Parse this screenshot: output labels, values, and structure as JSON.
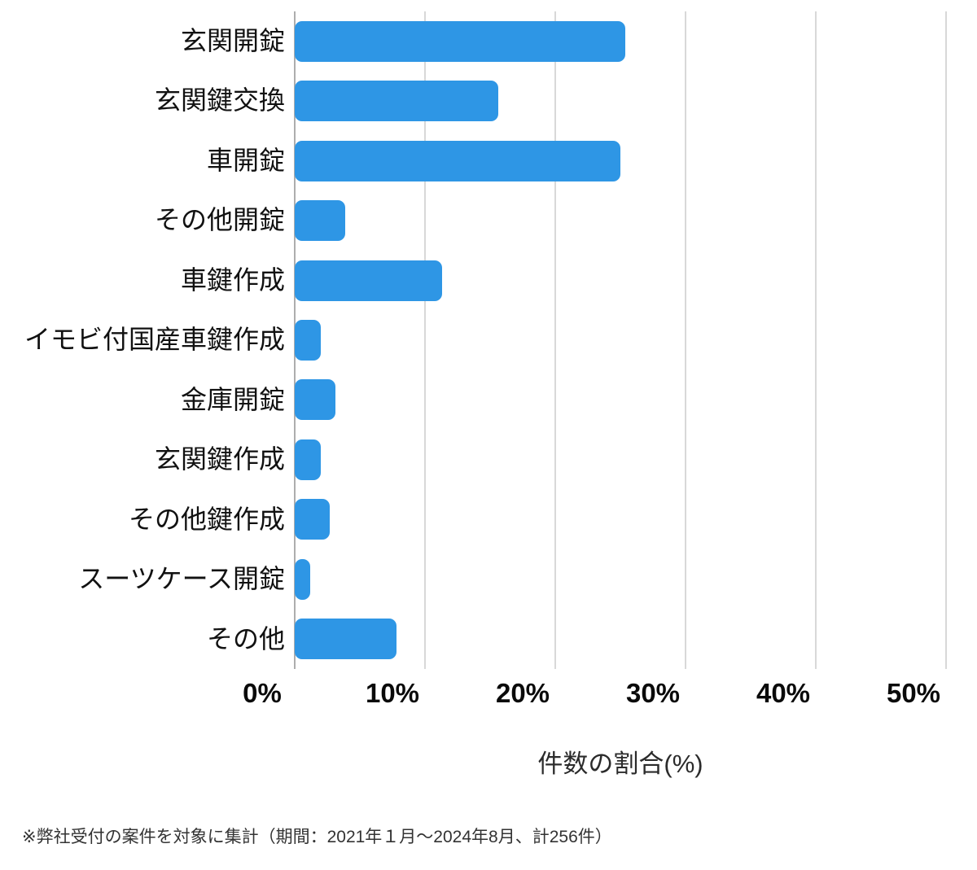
{
  "chart_data": {
    "type": "bar",
    "orientation": "horizontal",
    "title": "",
    "categories": [
      "玄関開錠",
      "玄関鍵交換",
      "車開錠",
      "その他開錠",
      "車鍵作成",
      "イモビ付国産車鍵作成",
      "金庫開錠",
      "玄関鍵作成",
      "その他鍵作成",
      "スーツケース開錠",
      "その他"
    ],
    "values": [
      25.4,
      15.6,
      25.0,
      3.9,
      11.3,
      2.0,
      3.1,
      2.0,
      2.7,
      1.2,
      7.8
    ],
    "values_unit": "%",
    "xlabel": "件数の割合(%)",
    "ylabel": "",
    "xlim": [
      0,
      50
    ],
    "x_ticks": [
      {
        "value": 0,
        "label": "0%"
      },
      {
        "value": 10,
        "label": "10%"
      },
      {
        "value": 20,
        "label": "20%"
      },
      {
        "value": 30,
        "label": "30%"
      },
      {
        "value": 40,
        "label": "40%"
      },
      {
        "value": 50,
        "label": "50%"
      }
    ],
    "grid": "vertical",
    "legend": "none",
    "colors": {
      "bar": "#2E96E5",
      "gridline": "#D8D8D8",
      "axis_line": "#ADADAD",
      "label_text": "#111111",
      "tick_text": "#0A0A0A",
      "axis_title_text": "#2B2B2B",
      "footnote_text": "#333333",
      "background": "#FFFFFF"
    }
  },
  "footnote": "※弊社受付の案件を対象に集計（期間：2021年１月～2024年8月、計256件）"
}
